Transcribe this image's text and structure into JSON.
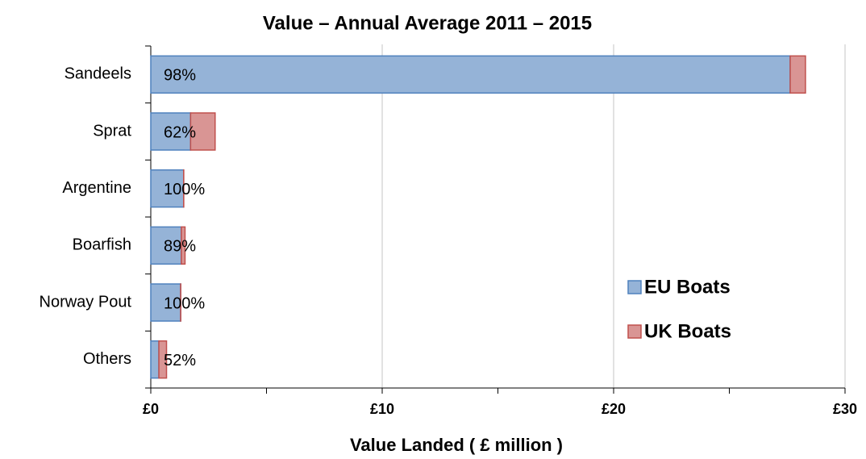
{
  "chart_data": {
    "type": "stacked_barh",
    "title": "Value – Annual Average 2011 – 2015",
    "x_label": "Value Landed ( £ million )",
    "categories": [
      "Sandeels",
      "Sprat",
      "Argentine",
      "Boarfish",
      "Norway Pout",
      "Others"
    ],
    "series": [
      {
        "name": "EU Boats",
        "color": "#95b3d7",
        "edge": "#4f81bd",
        "values": [
          27.63,
          1.72,
          1.42,
          1.32,
          1.29,
          0.35
        ]
      },
      {
        "name": "UK Boats",
        "color": "#d99594",
        "edge": "#c0504d",
        "values": [
          0.66,
          1.06,
          0.005,
          0.16,
          0.005,
          0.33
        ]
      }
    ],
    "share_labels": [
      "98%",
      "62%",
      "100%",
      "89%",
      "100%",
      "52%"
    ],
    "xlim": [
      0,
      30
    ],
    "xticks": [
      {
        "value": 0,
        "label": "£0"
      },
      {
        "value": 10,
        "label": "£10"
      },
      {
        "value": 20,
        "label": "£20"
      },
      {
        "value": 30,
        "label": "£30"
      }
    ],
    "minor_xticks": [
      5,
      15,
      25
    ],
    "grid": true,
    "legend": "lower right"
  }
}
